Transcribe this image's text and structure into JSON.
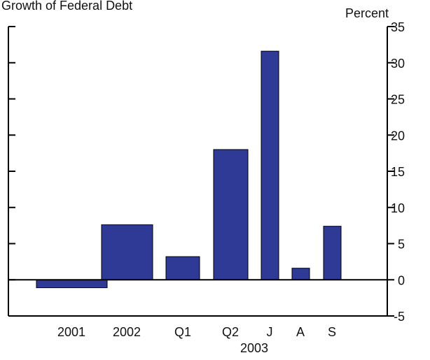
{
  "chart_data": {
    "type": "bar",
    "title": "Growth of Federal Debt",
    "y_axis_label": "Percent",
    "categories": [
      "2001",
      "2002",
      "Q1",
      "Q2",
      "J",
      "A",
      "S"
    ],
    "group_label": "2003",
    "values": [
      -1.1,
      7.6,
      3.2,
      18,
      31.6,
      1.6,
      7.4
    ],
    "color": "#2e3a96",
    "ylim": [
      -5,
      35
    ],
    "yticks": [
      -5,
      0,
      5,
      10,
      15,
      20,
      25,
      30,
      35
    ]
  }
}
